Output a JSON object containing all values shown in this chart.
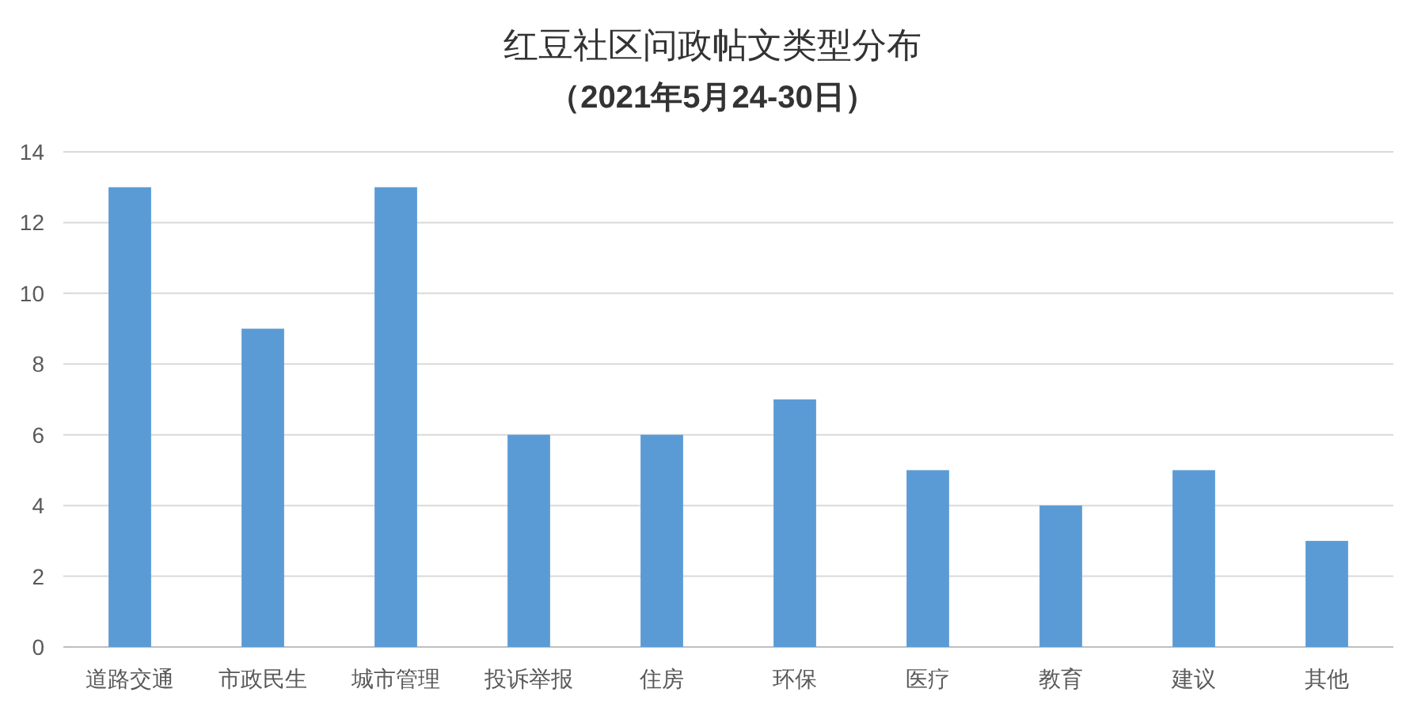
{
  "chart_data": {
    "type": "bar",
    "title": "红豆社区问政帖文类型分布",
    "subtitle": "（2021年5月24-30日）",
    "categories": [
      "道路交通",
      "市政民生",
      "城市管理",
      "投诉举报",
      "住房",
      "环保",
      "医疗",
      "教育",
      "建议",
      "其他"
    ],
    "values": [
      13,
      9,
      13,
      6,
      6,
      7,
      5,
      4,
      5,
      3
    ],
    "color": "#5b9bd5",
    "ylim": [
      0,
      14
    ],
    "yticks": [
      0,
      2,
      4,
      6,
      8,
      10,
      12,
      14
    ],
    "grid": "y"
  }
}
